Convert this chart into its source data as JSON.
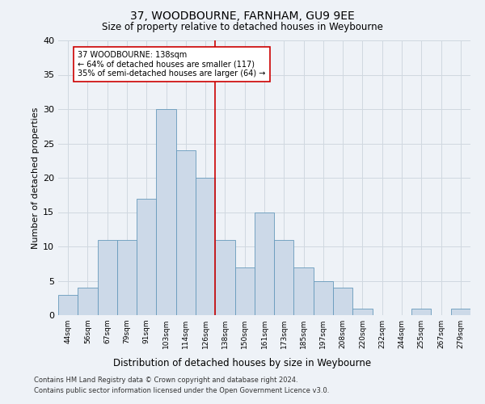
{
  "title": "37, WOODBOURNE, FARNHAM, GU9 9EE",
  "subtitle": "Size of property relative to detached houses in Weybourne",
  "xlabel": "Distribution of detached houses by size in Weybourne",
  "ylabel": "Number of detached properties",
  "bar_color": "#ccd9e8",
  "bar_edge_color": "#6699bb",
  "grid_color": "#d0d8e0",
  "vline_color": "#cc0000",
  "annotation_text": "37 WOODBOURNE: 138sqm\n← 64% of detached houses are smaller (117)\n35% of semi-detached houses are larger (64) →",
  "annotation_box_color": "#ffffff",
  "annotation_box_edge": "#cc0000",
  "categories": [
    "44sqm",
    "56sqm",
    "67sqm",
    "79sqm",
    "91sqm",
    "103sqm",
    "114sqm",
    "126sqm",
    "138sqm",
    "150sqm",
    "161sqm",
    "173sqm",
    "185sqm",
    "197sqm",
    "208sqm",
    "220sqm",
    "232sqm",
    "244sqm",
    "255sqm",
    "267sqm",
    "279sqm"
  ],
  "values": [
    3,
    4,
    11,
    11,
    17,
    30,
    24,
    20,
    11,
    7,
    15,
    11,
    7,
    5,
    4,
    1,
    0,
    0,
    1,
    0,
    1
  ],
  "ylim": [
    0,
    40
  ],
  "yticks": [
    0,
    5,
    10,
    15,
    20,
    25,
    30,
    35,
    40
  ],
  "background_color": "#eef2f7",
  "footer_line1": "Contains HM Land Registry data © Crown copyright and database right 2024.",
  "footer_line2": "Contains public sector information licensed under the Open Government Licence v3.0."
}
